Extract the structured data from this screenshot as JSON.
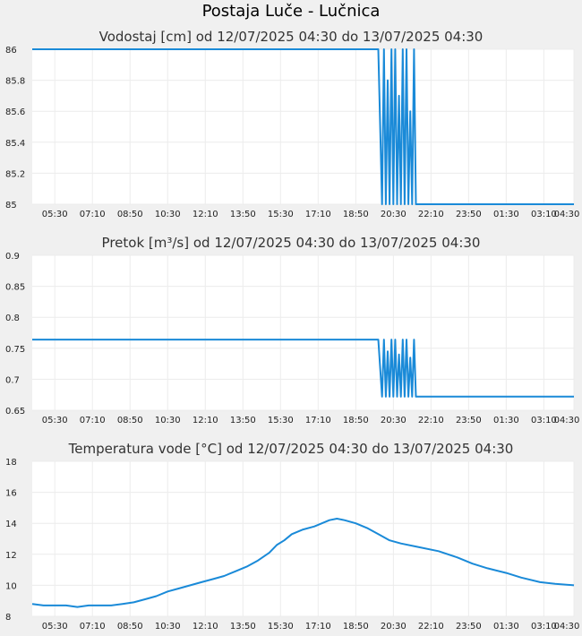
{
  "station": {
    "title": "Postaja Luče - Lučnica"
  },
  "colors": {
    "series": "#1a8ad8",
    "plot_bg": "#ffffff",
    "page_bg": "#f0f0f0"
  },
  "chart_data": [
    {
      "type": "line",
      "title": "Vodostaj [cm] od 12/07/2025 04:30 do 13/07/2025 04:30",
      "xlabel": "",
      "ylabel": "",
      "xlim": [
        "04:30",
        "04:30 (next day)"
      ],
      "ylim": [
        85,
        86
      ],
      "y_ticks": [
        "85",
        "85.2",
        "85.4",
        "85.6",
        "85.8",
        "86"
      ],
      "x_ticks": [
        "05:30",
        "07:10",
        "08:50",
        "10:30",
        "12:10",
        "13:50",
        "15:30",
        "17:10",
        "18:50",
        "20:30",
        "22:10",
        "23:50",
        "01:30",
        "03:10",
        "04:30"
      ],
      "grid": true,
      "series": [
        {
          "values": [
            [
              "04:30",
              86
            ],
            [
              "19:50",
              86
            ],
            [
              "20:00",
              85
            ],
            [
              "20:05",
              86
            ],
            [
              "20:10",
              85
            ],
            [
              "20:15",
              85.8
            ],
            [
              "20:20",
              85
            ],
            [
              "20:25",
              86
            ],
            [
              "20:30",
              85
            ],
            [
              "20:35",
              86
            ],
            [
              "20:40",
              85
            ],
            [
              "20:45",
              85.7
            ],
            [
              "20:50",
              85
            ],
            [
              "20:55",
              86
            ],
            [
              "21:00",
              85
            ],
            [
              "21:05",
              86
            ],
            [
              "21:10",
              85
            ],
            [
              "21:15",
              85.6
            ],
            [
              "21:20",
              85
            ],
            [
              "21:25",
              86
            ],
            [
              "21:30",
              85
            ],
            [
              "04:30",
              85
            ]
          ]
        }
      ]
    },
    {
      "type": "line",
      "title": "Pretok [m³/s] od 12/07/2025 04:30 do 13/07/2025 04:30",
      "xlabel": "",
      "ylabel": "",
      "xlim": [
        "04:30",
        "04:30 (next day)"
      ],
      "ylim": [
        0.65,
        0.9
      ],
      "y_ticks": [
        "0.65",
        "0.7",
        "0.75",
        "0.8",
        "0.85",
        "0.9"
      ],
      "x_ticks": [
        "05:30",
        "07:10",
        "08:50",
        "10:30",
        "12:10",
        "13:50",
        "15:30",
        "17:10",
        "18:50",
        "20:30",
        "22:10",
        "23:50",
        "01:30",
        "03:10",
        "04:30"
      ],
      "grid": true,
      "series": [
        {
          "values": [
            [
              "04:30",
              0.764
            ],
            [
              "19:50",
              0.764
            ],
            [
              "20:00",
              0.672
            ],
            [
              "20:05",
              0.764
            ],
            [
              "20:10",
              0.672
            ],
            [
              "20:15",
              0.745
            ],
            [
              "20:20",
              0.672
            ],
            [
              "20:25",
              0.764
            ],
            [
              "20:30",
              0.672
            ],
            [
              "20:35",
              0.764
            ],
            [
              "20:40",
              0.672
            ],
            [
              "20:45",
              0.74
            ],
            [
              "20:50",
              0.672
            ],
            [
              "20:55",
              0.764
            ],
            [
              "21:00",
              0.672
            ],
            [
              "21:05",
              0.764
            ],
            [
              "21:10",
              0.672
            ],
            [
              "21:15",
              0.735
            ],
            [
              "21:20",
              0.672
            ],
            [
              "21:25",
              0.764
            ],
            [
              "21:30",
              0.672
            ],
            [
              "04:30",
              0.672
            ]
          ]
        }
      ]
    },
    {
      "type": "line",
      "title": "Temperatura vode [°C] od 12/07/2025 04:30 do 13/07/2025 04:30",
      "xlabel": "",
      "ylabel": "",
      "xlim": [
        "04:30",
        "04:30 (next day)"
      ],
      "ylim": [
        8,
        18
      ],
      "y_ticks": [
        "8",
        "10",
        "12",
        "14",
        "16",
        "18"
      ],
      "x_ticks": [
        "05:30",
        "07:10",
        "08:50",
        "10:30",
        "12:10",
        "13:50",
        "15:30",
        "17:10",
        "18:50",
        "20:30",
        "22:10",
        "23:50",
        "01:30",
        "03:10",
        "04:30"
      ],
      "grid": true,
      "series": [
        {
          "values": [
            [
              "04:30",
              8.8
            ],
            [
              "05:00",
              8.7
            ],
            [
              "06:00",
              8.7
            ],
            [
              "06:30",
              8.6
            ],
            [
              "07:00",
              8.7
            ],
            [
              "08:00",
              8.7
            ],
            [
              "08:30",
              8.8
            ],
            [
              "09:00",
              8.9
            ],
            [
              "09:30",
              9.1
            ],
            [
              "10:00",
              9.3
            ],
            [
              "10:30",
              9.6
            ],
            [
              "11:00",
              9.8
            ],
            [
              "11:30",
              10.0
            ],
            [
              "12:00",
              10.2
            ],
            [
              "12:30",
              10.4
            ],
            [
              "13:00",
              10.6
            ],
            [
              "13:30",
              10.9
            ],
            [
              "14:00",
              11.2
            ],
            [
              "14:30",
              11.6
            ],
            [
              "15:00",
              12.1
            ],
            [
              "15:20",
              12.6
            ],
            [
              "15:40",
              12.9
            ],
            [
              "16:00",
              13.3
            ],
            [
              "16:30",
              13.6
            ],
            [
              "17:00",
              13.8
            ],
            [
              "17:20",
              14.0
            ],
            [
              "17:40",
              14.2
            ],
            [
              "18:00",
              14.3
            ],
            [
              "18:20",
              14.2
            ],
            [
              "18:50",
              14.0
            ],
            [
              "19:20",
              13.7
            ],
            [
              "19:50",
              13.3
            ],
            [
              "20:20",
              12.9
            ],
            [
              "20:50",
              12.7
            ],
            [
              "21:30",
              12.5
            ],
            [
              "22:30",
              12.2
            ],
            [
              "23:20",
              11.8
            ],
            [
              "00:00",
              11.4
            ],
            [
              "00:40",
              11.1
            ],
            [
              "01:30",
              10.8
            ],
            [
              "02:10",
              10.5
            ],
            [
              "03:00",
              10.2
            ],
            [
              "03:40",
              10.1
            ],
            [
              "04:30",
              10.0
            ]
          ]
        }
      ]
    }
  ]
}
